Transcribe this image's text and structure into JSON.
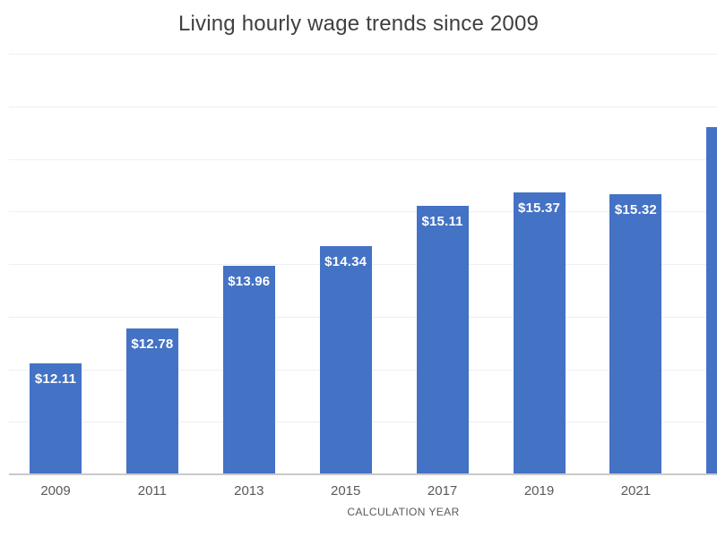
{
  "chart_data": {
    "type": "bar",
    "title": "Living hourly wage trends since 2009",
    "xlabel": "CALCULATION YEAR",
    "ylabel": "",
    "categories": [
      "2009",
      "2011",
      "2013",
      "2015",
      "2017",
      "2019",
      "2021"
    ],
    "values": [
      12.11,
      12.78,
      13.96,
      14.34,
      15.11,
      15.37,
      15.32
    ],
    "data_labels": [
      "$12.11",
      "$12.78",
      "$13.96",
      "$14.34",
      "$15.11",
      "$15.37",
      "$15.32"
    ],
    "partial_bar_right": {
      "visible": true,
      "value_estimate": 16.6,
      "label_visible": false
    },
    "ylim": [
      10,
      18
    ],
    "gridline_step": 1,
    "grid": true,
    "legend": "none",
    "y_axis_labels_visible": false,
    "colors": {
      "bar": "#4472c4",
      "data_label": "#ffffff",
      "axis_text": "#595959",
      "title_text": "#3f3f3f",
      "gridline": "#efefef",
      "axis_line": "#c9c9c9",
      "background": "#ffffff"
    }
  }
}
